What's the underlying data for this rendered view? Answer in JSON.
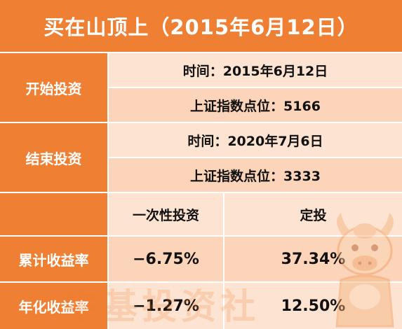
{
  "title": "买在山顶上（2015年6月12日）",
  "start": {
    "label": "开始投资",
    "time": "时间：2015年6月12日",
    "index": "上证指数点位：5166"
  },
  "end": {
    "label": "结束投资",
    "time": "时间：2020年7月6日",
    "index": "上证指数点位：3333"
  },
  "columns": [
    "一次性投资",
    "定投"
  ],
  "rows": [
    {
      "label": "累计收益率",
      "lump_sum": "−6.75%",
      "dca": "37.34%"
    },
    {
      "label": "年化收益率",
      "lump_sum": "−1.27%",
      "dca": "12.50%"
    }
  ],
  "watermark": "牛基投资社",
  "colors": {
    "brand": "#ef7f33",
    "row_light": "#fde3d1",
    "row_mid": "#fbd4b9"
  }
}
